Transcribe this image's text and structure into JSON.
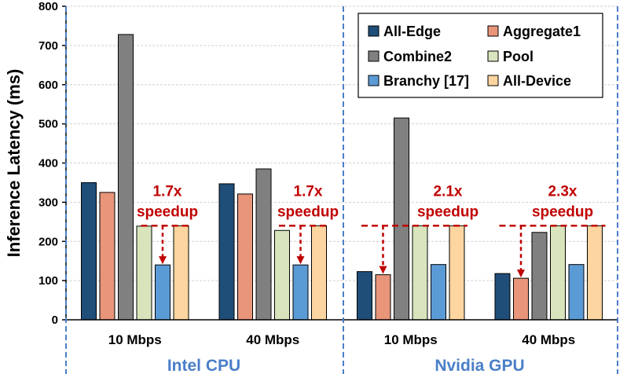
{
  "chart_data": {
    "type": "bar",
    "ylabel": "Inference Latency (ms)",
    "ylim": [
      0,
      800
    ],
    "yticks": [
      0,
      100,
      200,
      300,
      400,
      500,
      600,
      700,
      800
    ],
    "grid": true,
    "legend_position": "top-right",
    "categories": [
      "10 Mbps",
      "40 Mbps",
      "10 Mbps",
      "40 Mbps"
    ],
    "groups": [
      {
        "label": "Intel CPU",
        "categories": [
          0,
          1
        ]
      },
      {
        "label": "Nvidia GPU",
        "categories": [
          2,
          3
        ]
      }
    ],
    "series": [
      {
        "name": "All-Edge",
        "color": "#1f4e79",
        "values": [
          350,
          347,
          123,
          118
        ]
      },
      {
        "name": "Aggregate1",
        "color": "#e8957a",
        "values": [
          325,
          321,
          115,
          106
        ]
      },
      {
        "name": "Combine2",
        "color": "#808080",
        "values": [
          728,
          385,
          515,
          223
        ]
      },
      {
        "name": "Pool",
        "color": "#d8e4bc",
        "values": [
          239,
          228,
          240,
          240
        ]
      },
      {
        "name": "Branchy [17]",
        "color": "#5b9bd5",
        "values": [
          140,
          140,
          141,
          141
        ]
      },
      {
        "name": "All-Device",
        "color": "#fdd5a0",
        "values": [
          240,
          240,
          240,
          240
        ]
      }
    ],
    "annotations": [
      {
        "category": 0,
        "line1": "1.7x",
        "line2": "speedup",
        "from_value": 240,
        "to_value": 140,
        "target_series": "Branchy [17]"
      },
      {
        "category": 1,
        "line1": "1.7x",
        "line2": "speedup",
        "from_value": 240,
        "to_value": 140,
        "target_series": "Branchy [17]"
      },
      {
        "category": 2,
        "line1": "2.1x",
        "line2": "speedup",
        "from_value": 240,
        "to_value": 115,
        "target_series": "Aggregate1"
      },
      {
        "category": 3,
        "line1": "2.3x",
        "line2": "speedup",
        "from_value": 240,
        "to_value": 106,
        "target_series": "Aggregate1"
      }
    ]
  }
}
